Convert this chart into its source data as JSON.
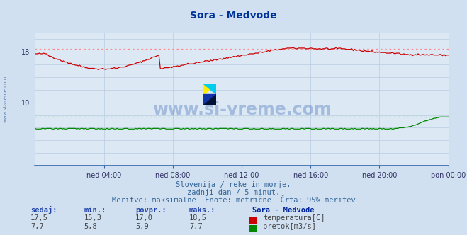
{
  "title": "Sora - Medvode",
  "bg_color": "#d0e0f0",
  "plot_bg_color": "#dce8f4",
  "grid_color": "#b8cce0",
  "xlabel_ticks": [
    "ned 04:00",
    "ned 08:00",
    "ned 12:00",
    "ned 16:00",
    "ned 20:00",
    "pon 00:00"
  ],
  "temp_color": "#cc0000",
  "flow_color": "#008800",
  "dashed_color_temp": "#ff8888",
  "dashed_color_flow": "#88cc88",
  "watermark_text": "www.si-vreme.com",
  "subtitle1": "Slovenija / reke in morje.",
  "subtitle2": "zadnji dan / 5 minut.",
  "subtitle3": "Meritve: maksimalne  Enote: metrične  Črta: 95% meritev",
  "table_headers": [
    "sedaj:",
    "min.:",
    "povpr.:",
    "maks.:"
  ],
  "table_row1": [
    "17,5",
    "15,3",
    "17,0",
    "18,5"
  ],
  "table_row2": [
    "7,7",
    "5,8",
    "5,9",
    "7,7"
  ],
  "legend_label1": "temperatura[C]",
  "legend_label2": "pretok[m3/s]",
  "station_label": "Sora - Medvode",
  "temp_max_line": 18.5,
  "flow_max_line": 7.7,
  "ymin": 0,
  "ymax": 21,
  "ytick_vals": [
    10,
    18
  ],
  "n_points": 288
}
